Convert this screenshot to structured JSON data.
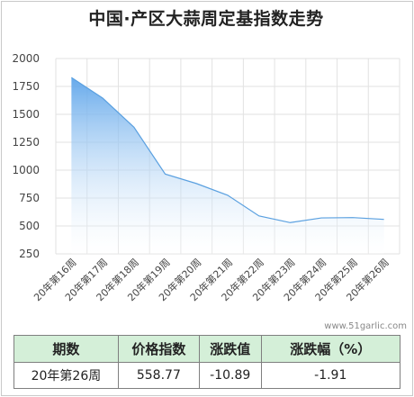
{
  "chart_data": {
    "type": "area",
    "title": "中国·产区大蒜周定基指数走势",
    "categories": [
      "20年第16周",
      "20年第17周",
      "20年第18周",
      "20年第19周",
      "20年第20周",
      "20年第21周",
      "20年第22周",
      "20年第23周",
      "20年第24周",
      "20年第25周",
      "20年第26周"
    ],
    "values": [
      1830,
      1645,
      1385,
      965,
      880,
      775,
      590,
      530,
      572,
      575,
      558.77
    ],
    "yticks": [
      "2000",
      "1750",
      "1500",
      "1250",
      "1000",
      "750",
      "500",
      "250"
    ],
    "ylim": [
      250,
      2000
    ],
    "grid": true,
    "fill_color": "#7fb6ea",
    "line_color": "#5aa0e0"
  },
  "watermark": "www.51garlic.com",
  "table": {
    "headers": [
      "期数",
      "价格指数",
      "涨跌值",
      "涨跌幅（%）"
    ],
    "row": [
      "20年第26周",
      "558.77",
      "-10.89",
      "-1.91"
    ]
  }
}
